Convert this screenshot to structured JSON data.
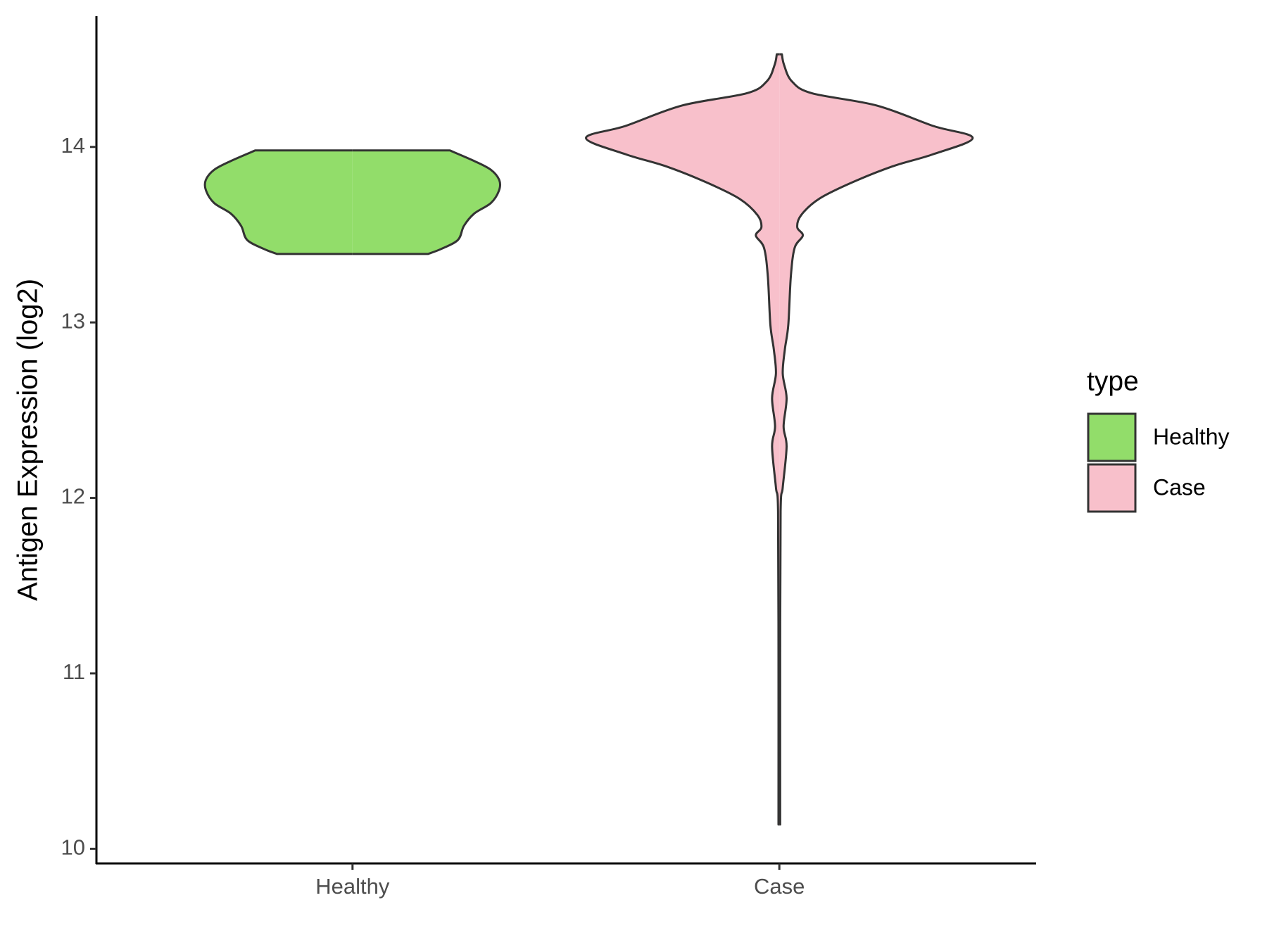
{
  "chart_data": {
    "type": "violin",
    "y_label": "Antigen Expression (log2)",
    "categories": [
      "Healthy",
      "Case"
    ],
    "xlim": [
      0.4,
      2.6
    ],
    "ylim": [
      9.917,
      14.745
    ],
    "yticks": [
      10,
      11,
      12,
      13,
      14
    ],
    "legend_title": "type",
    "legend_position": "right",
    "series": [
      {
        "name": "Healthy",
        "color": "#92dd6a",
        "y": [
          13.39,
          13.42,
          13.47,
          13.55,
          13.62,
          13.68,
          13.75,
          13.81,
          13.87,
          13.92,
          13.98
        ],
        "half_width": [
          0.177,
          0.209,
          0.247,
          0.261,
          0.285,
          0.324,
          0.343,
          0.344,
          0.324,
          0.285,
          0.228
        ]
      },
      {
        "name": "Case",
        "color": "#f8c0cb",
        "y": [
          10.139,
          11.134,
          11.921,
          12.06,
          12.292,
          12.407,
          12.569,
          12.708,
          12.847,
          12.986,
          13.264,
          13.426,
          13.495,
          13.542,
          13.611,
          13.704,
          13.796,
          13.889,
          13.958,
          14.051,
          14.12,
          14.236,
          14.306,
          14.375,
          14.468,
          14.528
        ],
        "half_width": [
          0.002,
          0.002,
          0.003,
          0.008,
          0.017,
          0.01,
          0.017,
          0.008,
          0.013,
          0.021,
          0.027,
          0.036,
          0.055,
          0.042,
          0.051,
          0.093,
          0.169,
          0.265,
          0.36,
          0.453,
          0.36,
          0.228,
          0.076,
          0.029,
          0.011,
          0.006
        ]
      }
    ]
  }
}
